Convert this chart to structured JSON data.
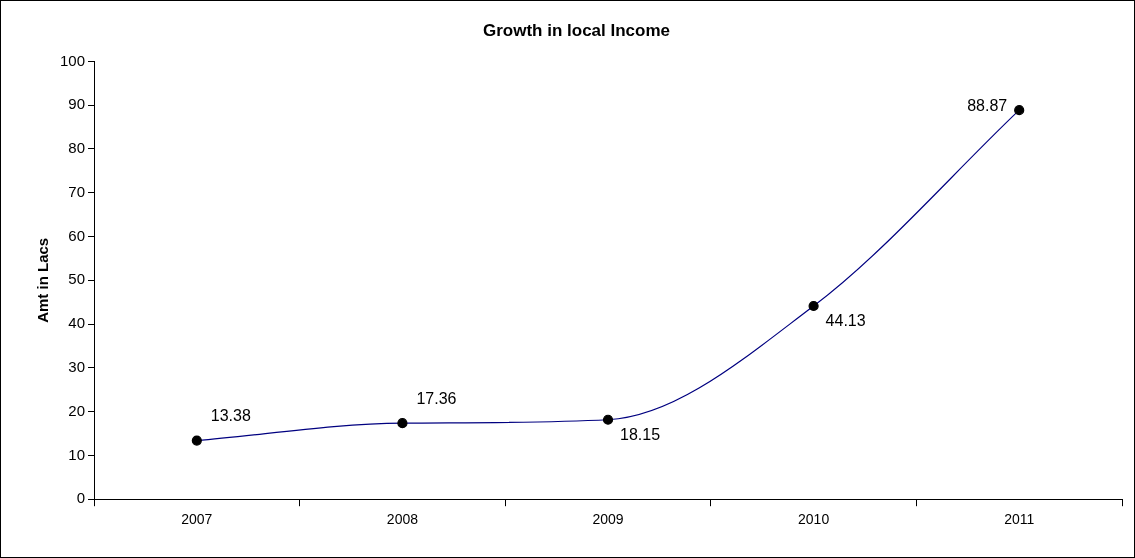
{
  "chart_data": {
    "type": "line",
    "title": "Growth in local Income",
    "ylabel": "Amt in Lacs",
    "categories": [
      "2007",
      "2008",
      "2009",
      "2010",
      "2011"
    ],
    "series": [
      {
        "color": "#000080",
        "values": [
          13.38,
          17.36,
          18.15,
          44.13,
          88.87
        ]
      }
    ],
    "ylim": [
      0,
      100
    ],
    "yticks": [
      0,
      10,
      20,
      30,
      40,
      50,
      60,
      70,
      80,
      90,
      100
    ],
    "grid": false,
    "legend": false,
    "marker": "circle",
    "line_style": "solid",
    "data_labels": true
  }
}
